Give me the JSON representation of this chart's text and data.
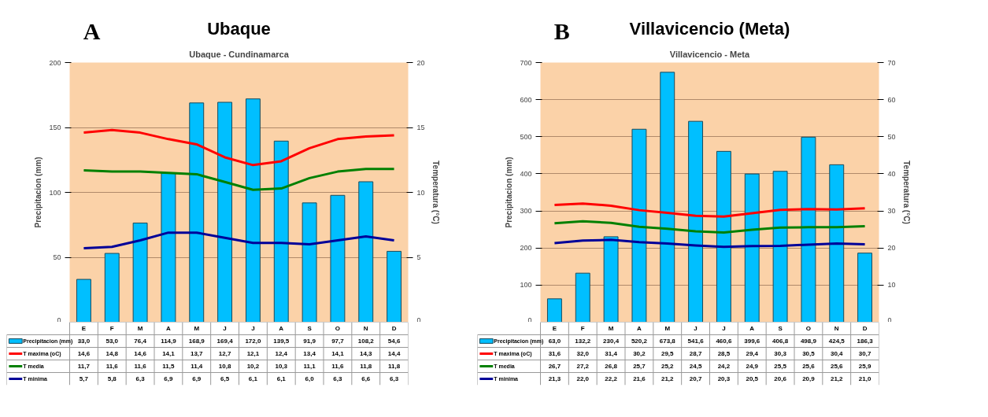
{
  "chart_data": [
    {
      "type": "bar",
      "title": "Ubaque",
      "subtitle": "Ubaque - Cundinamarca",
      "annotations": [
        "A"
      ],
      "ylabel": "Precipitacion (mm)",
      "y2label": "Temperatura (°C)",
      "categories": [
        "E",
        "F",
        "M",
        "A",
        "M",
        "J",
        "J",
        "A",
        "S",
        "O",
        "N",
        "D"
      ],
      "ylim": [
        0,
        200
      ],
      "yticks": [
        0,
        50,
        100,
        150,
        200
      ],
      "y2lim": [
        0,
        20
      ],
      "y2ticks": [
        0,
        5,
        10,
        15,
        20
      ],
      "grid": "y",
      "legend": "bottom",
      "tick_labels": "y",
      "series": [
        {
          "name": "Precipitacion (mm)",
          "type": "bar",
          "color": "#00bfff",
          "values": [
            33.0,
            53.0,
            76.4,
            114.9,
            168.9,
            169.4,
            172.0,
            139.5,
            91.9,
            97.7,
            108.2,
            54.6
          ],
          "value_labels": [
            "33,0",
            "53,0",
            "76,4",
            "114,9",
            "168,9",
            "169,4",
            "172,0",
            "139,5",
            "91,9",
            "97,7",
            "108,2",
            "54,6"
          ]
        },
        {
          "name": "T maxima (oC)",
          "type": "line",
          "axis": "y2",
          "color": "#ff0000",
          "values": [
            14.6,
            14.8,
            14.6,
            14.1,
            13.7,
            12.7,
            12.1,
            12.4,
            13.4,
            14.1,
            14.3,
            14.4
          ],
          "value_labels": [
            "14,6",
            "14,8",
            "14,6",
            "14,1",
            "13,7",
            "12,7",
            "12,1",
            "12,4",
            "13,4",
            "14,1",
            "14,3",
            "14,4"
          ]
        },
        {
          "name": "T media",
          "type": "line",
          "axis": "y2",
          "color": "#008000",
          "values": [
            11.7,
            11.6,
            11.6,
            11.5,
            11.4,
            10.8,
            10.2,
            10.3,
            11.1,
            11.6,
            11.8,
            11.8
          ],
          "value_labels": [
            "11,7",
            "11,6",
            "11,6",
            "11,5",
            "11,4",
            "10,8",
            "10,2",
            "10,3",
            "11,1",
            "11,6",
            "11,8",
            "11,8"
          ]
        },
        {
          "name": "T minima",
          "type": "line",
          "axis": "y2",
          "color": "#000099",
          "values": [
            5.7,
            5.8,
            6.3,
            6.9,
            6.9,
            6.5,
            6.1,
            6.1,
            6.0,
            6.3,
            6.6,
            6.3
          ],
          "value_labels": [
            "5,7",
            "5,8",
            "6,3",
            "6,9",
            "6,9",
            "6,5",
            "6,1",
            "6,1",
            "6,0",
            "6,3",
            "6,6",
            "6,3"
          ]
        }
      ]
    },
    {
      "type": "bar",
      "title": "Villavicencio (Meta)",
      "subtitle": "Villavicencio - Meta",
      "annotations": [
        "B"
      ],
      "ylabel": "Precipitacion (mm)",
      "y2label": "Temperatura (°C)",
      "categories": [
        "E",
        "F",
        "M",
        "A",
        "M",
        "J",
        "J",
        "A",
        "S",
        "O",
        "N",
        "D"
      ],
      "ylim": [
        0,
        700
      ],
      "yticks": [
        0,
        100,
        200,
        300,
        400,
        500,
        600,
        700
      ],
      "y2lim": [
        0,
        70
      ],
      "y2ticks": [
        0,
        10,
        20,
        30,
        40,
        50,
        60,
        70
      ],
      "grid": "y",
      "legend": "bottom",
      "tick_labels": "y",
      "series": [
        {
          "name": "Precipitacion (mm)",
          "type": "bar",
          "color": "#00bfff",
          "values": [
            63.0,
            132.2,
            230.4,
            520.2,
            673.8,
            541.6,
            460.6,
            399.6,
            406.8,
            498.9,
            424.5,
            186.3
          ],
          "value_labels": [
            "63,0",
            "132,2",
            "230,4",
            "520,2",
            "673,8",
            "541,6",
            "460,6",
            "399,6",
            "406,8",
            "498,9",
            "424,5",
            "186,3"
          ]
        },
        {
          "name": "T maxima (oC)",
          "type": "line",
          "axis": "y2",
          "color": "#ff0000",
          "values": [
            31.6,
            32.0,
            31.4,
            30.2,
            29.5,
            28.7,
            28.5,
            29.4,
            30.3,
            30.5,
            30.4,
            30.7
          ],
          "value_labels": [
            "31,6",
            "32,0",
            "31,4",
            "30,2",
            "29,5",
            "28,7",
            "28,5",
            "29,4",
            "30,3",
            "30,5",
            "30,4",
            "30,7"
          ]
        },
        {
          "name": "T media",
          "type": "line",
          "axis": "y2",
          "color": "#008000",
          "values": [
            26.7,
            27.2,
            26.8,
            25.7,
            25.2,
            24.5,
            24.2,
            24.9,
            25.5,
            25.6,
            25.6,
            25.9
          ],
          "value_labels": [
            "26,7",
            "27,2",
            "26,8",
            "25,7",
            "25,2",
            "24,5",
            "24,2",
            "24,9",
            "25,5",
            "25,6",
            "25,6",
            "25,9"
          ]
        },
        {
          "name": "T minima",
          "type": "line",
          "axis": "y2",
          "color": "#000099",
          "values": [
            21.3,
            22.0,
            22.2,
            21.6,
            21.2,
            20.7,
            20.3,
            20.5,
            20.6,
            20.9,
            21.2,
            21.0
          ],
          "value_labels": [
            "21,3",
            "22,0",
            "22,2",
            "21,6",
            "21,2",
            "20,7",
            "20,3",
            "20,5",
            "20,6",
            "20,9",
            "21,2",
            "21,0"
          ]
        }
      ]
    }
  ]
}
